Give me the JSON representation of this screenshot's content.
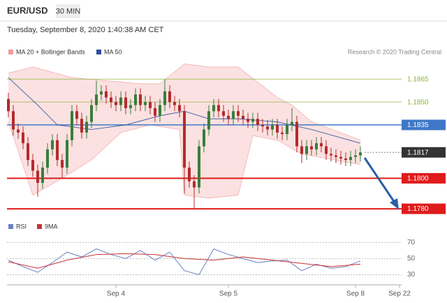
{
  "header": {
    "symbol": "EUR/USD",
    "timeframe": "30 MIN",
    "datetime": "Tuesday, September 8, 2020 1:40:38 AM CET"
  },
  "chart_data": [
    {
      "type": "candlestick",
      "credit": "Research © 2020 Trading Central",
      "up_color": "#3a7d3a",
      "down_color": "#b52a2a",
      "categories": [
        null,
        null,
        null,
        null,
        null,
        null,
        null,
        null,
        null,
        null,
        null,
        null,
        null,
        null,
        null,
        null,
        null,
        null,
        null,
        null,
        null,
        null,
        "Sep 4",
        null,
        null,
        null,
        null,
        null,
        null,
        null,
        null,
        null,
        null,
        null,
        null,
        null,
        null,
        null,
        null,
        null,
        null,
        null,
        null,
        null,
        null,
        "Sep 5",
        null,
        null,
        null,
        null,
        null,
        null,
        null,
        null,
        null,
        null,
        null,
        null,
        null,
        null,
        null,
        null,
        null,
        null,
        null,
        null,
        null,
        null,
        null,
        null,
        null,
        "Sep 8",
        null,
        null,
        null,
        null,
        null,
        null,
        null,
        null,
        "Sep 22"
      ],
      "open": [
        1.1852,
        1.1844,
        1.1832,
        1.183,
        1.1823,
        1.1812,
        1.1805,
        1.1797,
        1.1807,
        1.1819,
        1.1825,
        1.1812,
        1.1807,
        1.1825,
        1.1844,
        1.1839,
        1.183,
        1.1837,
        1.1848,
        1.1855,
        1.1857,
        1.1853,
        1.185,
        1.1848,
        1.1853,
        1.1846,
        1.1848,
        1.1855,
        1.1848,
        1.185,
        1.1846,
        1.1841,
        1.1848,
        1.1857,
        1.185,
        1.1848,
        1.1844,
        1.1807,
        1.1798,
        1.1794,
        1.1821,
        1.1832,
        1.1844,
        1.1848,
        1.1844,
        1.1841,
        1.1839,
        1.1844,
        1.1841,
        1.1839,
        1.1837,
        1.1839,
        1.1835,
        1.1834,
        1.1832,
        1.1835,
        1.183,
        1.1829,
        1.1835,
        1.1837,
        1.1821,
        1.1816,
        1.1821,
        1.1819,
        1.1823,
        1.1821,
        1.1816,
        1.1815,
        1.1814,
        1.1813,
        1.1812,
        1.1814,
        1.1815,
        null,
        null,
        null,
        null,
        null,
        null,
        null,
        null
      ],
      "high": [
        1.1856,
        1.1848,
        1.1836,
        1.1834,
        1.1827,
        1.1816,
        1.1809,
        1.1811,
        1.1823,
        1.1829,
        1.1829,
        1.1816,
        1.1829,
        1.1848,
        1.1848,
        1.1843,
        1.1841,
        1.1852,
        1.1864,
        1.1861,
        1.1861,
        1.1857,
        1.1854,
        1.1857,
        1.1857,
        1.1852,
        1.1859,
        1.1859,
        1.1854,
        1.1854,
        1.185,
        1.1852,
        1.1865,
        1.1861,
        1.1854,
        1.1852,
        1.1848,
        1.1811,
        1.1802,
        1.1825,
        1.1836,
        1.1848,
        1.1852,
        1.1852,
        1.1848,
        1.1845,
        1.1848,
        1.1848,
        1.1845,
        1.1843,
        1.1843,
        1.1843,
        1.1839,
        1.1838,
        1.1839,
        1.1839,
        1.1834,
        1.1839,
        1.1846,
        1.1841,
        1.1825,
        1.1825,
        1.1825,
        1.1827,
        1.1827,
        1.1825,
        1.182,
        1.1819,
        1.1818,
        1.1817,
        1.1818,
        1.1819,
        1.1821,
        null,
        null,
        null,
        null,
        null,
        null,
        null,
        null
      ],
      "low": [
        1.184,
        1.1828,
        1.1826,
        1.1819,
        1.1808,
        1.1801,
        1.1788,
        1.1793,
        1.1803,
        1.1815,
        1.1808,
        1.18,
        1.1803,
        1.1821,
        1.1835,
        1.1826,
        1.1826,
        1.1833,
        1.1844,
        1.1851,
        1.1849,
        1.1846,
        1.1844,
        1.1844,
        1.1842,
        1.1842,
        1.1844,
        1.1844,
        1.1844,
        1.1842,
        1.1837,
        1.1837,
        1.1844,
        1.1846,
        1.1844,
        1.184,
        1.179,
        1.1794,
        1.178,
        1.179,
        1.1817,
        1.1828,
        1.184,
        1.184,
        1.1837,
        1.1835,
        1.1835,
        1.1837,
        1.1835,
        1.1833,
        1.1833,
        1.1831,
        1.183,
        1.1828,
        1.1828,
        1.1826,
        1.1825,
        1.1825,
        1.1831,
        1.1817,
        1.181,
        1.1812,
        1.1815,
        1.1815,
        1.1817,
        1.1812,
        1.1811,
        1.181,
        1.1809,
        1.1808,
        1.1808,
        1.181,
        1.1811,
        null,
        null,
        null,
        null,
        null,
        null,
        null,
        null
      ],
      "close": [
        1.1844,
        1.1832,
        1.183,
        1.1823,
        1.1812,
        1.1805,
        1.1797,
        1.1807,
        1.1819,
        1.1825,
        1.1812,
        1.1807,
        1.1825,
        1.1844,
        1.1839,
        1.183,
        1.1837,
        1.1848,
        1.1855,
        1.1857,
        1.1853,
        1.185,
        1.1848,
        1.1853,
        1.1846,
        1.1848,
        1.1855,
        1.1848,
        1.185,
        1.1846,
        1.1841,
        1.1848,
        1.1857,
        1.185,
        1.1848,
        1.1844,
        1.1807,
        1.1798,
        1.1794,
        1.1821,
        1.1832,
        1.1844,
        1.1848,
        1.1844,
        1.1841,
        1.1839,
        1.1844,
        1.1841,
        1.1839,
        1.1837,
        1.1839,
        1.1835,
        1.1834,
        1.1832,
        1.1835,
        1.183,
        1.1829,
        1.1835,
        1.1837,
        1.1821,
        1.1816,
        1.1821,
        1.1819,
        1.1823,
        1.1821,
        1.1816,
        1.1815,
        1.1814,
        1.1813,
        1.1812,
        1.1814,
        1.1815,
        1.1817,
        null,
        null,
        null,
        null,
        null,
        null,
        null,
        null
      ],
      "series": [
        {
          "name": "MA 20 + Bollinger Bands",
          "color": "#f29a9a",
          "upper": {
            "x": [
              0,
              5,
              13,
              20,
              27,
              31,
              36,
              41,
              47,
              55,
              58,
              62,
              68,
              72
            ],
            "values": [
              1.1869,
              1.1873,
              1.1866,
              1.1864,
              1.1862,
              1.1862,
              1.1875,
              1.1873,
              1.1873,
              1.1853,
              1.1848,
              1.1837,
              1.183,
              1.1825
            ]
          },
          "lower": {
            "x": [
              0,
              5,
              11,
              17,
              23,
              29,
              35,
              36,
              41,
              47,
              50,
              55,
              60,
              65,
              72
            ],
            "values": [
              1.1837,
              1.1789,
              1.18,
              1.1812,
              1.183,
              1.1835,
              1.1832,
              1.1789,
              1.1787,
              1.1789,
              1.1828,
              1.1825,
              1.1816,
              1.1813,
              1.1809
            ]
          }
        },
        {
          "name": "MA 50",
          "color": "#2b4f9e",
          "x": [
            0,
            6,
            10,
            17,
            24,
            31,
            36,
            41,
            47,
            55,
            62,
            72
          ],
          "values": [
            1.1866,
            1.1848,
            1.1835,
            1.1832,
            1.1835,
            1.1841,
            1.1844,
            1.1839,
            1.1839,
            1.1837,
            1.1832,
            1.1823
          ]
        }
      ],
      "levels": [
        {
          "value": 1.1865,
          "color": "#8db33a",
          "width": 1,
          "boxed": false
        },
        {
          "value": 1.185,
          "label": "1.1850",
          "color": "#8db33a",
          "width": 1,
          "boxed": false
        },
        {
          "value": 1.1835,
          "color": "#3f78c8",
          "width": 1.5,
          "boxed": true
        },
        {
          "value": 1.1817,
          "color": "#333333",
          "width": 1,
          "boxed": true,
          "dotted": true
        },
        {
          "value": 1.18,
          "label": "1.1800",
          "color": "#e01b1b",
          "width": 2,
          "boxed": true
        },
        {
          "value": 1.178,
          "label": "1.1780",
          "color": "#e01b1b",
          "width": 2,
          "boxed": true
        }
      ],
      "ylim": [
        1.1775,
        1.1878
      ]
    },
    {
      "type": "line",
      "series": [
        {
          "name": "RSI",
          "color": "#6a7fc0",
          "x": [
            0,
            3,
            6,
            9,
            12,
            15,
            18,
            21,
            24,
            27,
            30,
            33,
            36,
            39,
            42,
            45,
            48,
            51,
            54,
            57,
            60,
            63,
            66,
            69,
            72
          ],
          "values": [
            48,
            40,
            33,
            45,
            58,
            52,
            62,
            55,
            50,
            60,
            48,
            58,
            35,
            30,
            62,
            55,
            50,
            45,
            47,
            48,
            35,
            43,
            38,
            40,
            47
          ]
        },
        {
          "name": "9MA",
          "color": "#c83232",
          "x": [
            0,
            6,
            12,
            18,
            24,
            30,
            36,
            42,
            48,
            54,
            60,
            66,
            72
          ],
          "values": [
            46,
            38,
            48,
            55,
            56,
            55,
            50,
            48,
            52,
            48,
            44,
            40,
            43
          ]
        }
      ],
      "ylim": [
        20,
        78
      ],
      "yticks": [
        70,
        50,
        30
      ],
      "grid": true
    }
  ]
}
